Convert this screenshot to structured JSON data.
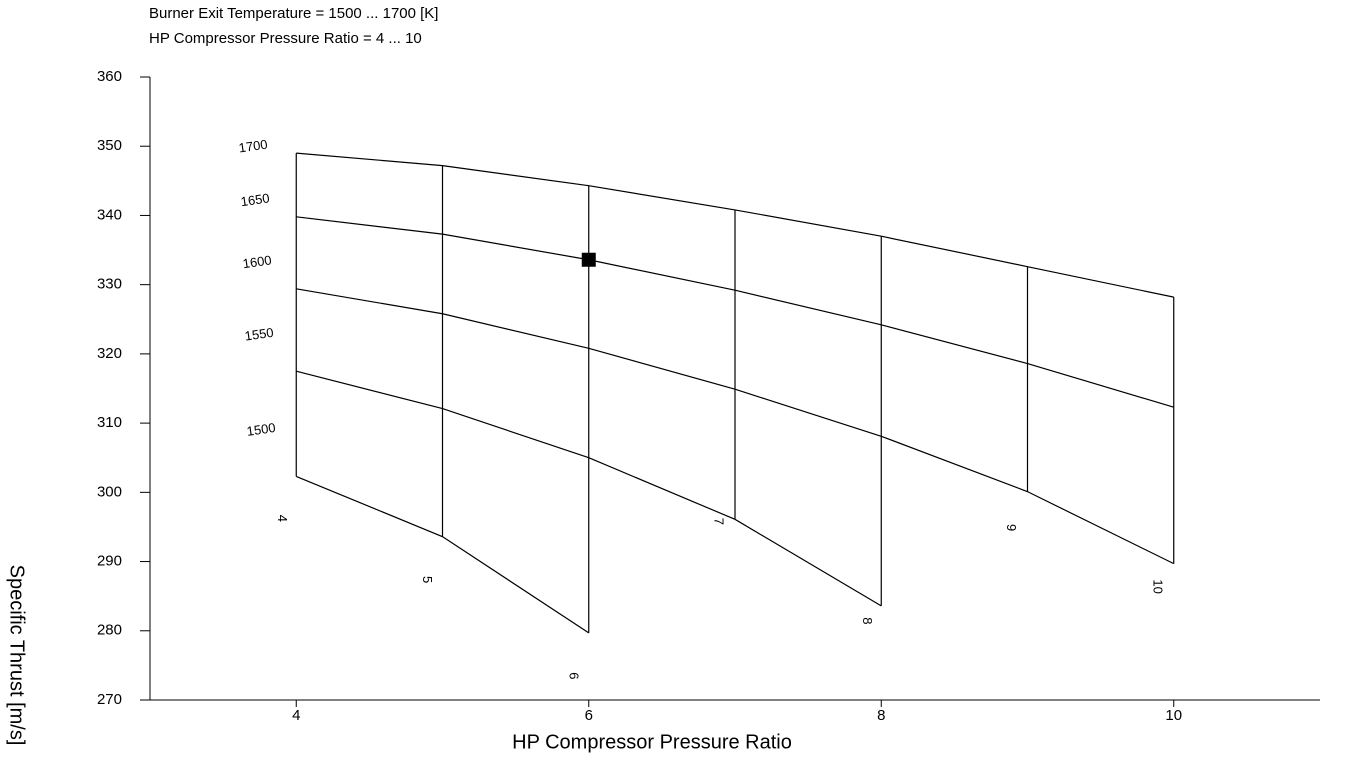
{
  "chart_data": {
    "type": "carpet",
    "subtitle_lines": [
      "Burner Exit Temperature = 1500 ... 1700 [K]",
      "HP Compressor Pressure Ratio = 4 ... 10"
    ],
    "x_label": "HP Compressor Pressure Ratio",
    "y_label": "Specific Thrust [m/s]",
    "x": [
      4,
      5,
      6,
      7,
      8,
      9,
      10
    ],
    "xlim": [
      3,
      11
    ],
    "xticks": [
      4,
      6,
      8,
      10
    ],
    "ylim": [
      270,
      360
    ],
    "yticks": [
      270,
      280,
      290,
      300,
      310,
      320,
      330,
      340,
      350,
      360
    ],
    "color": "#000000",
    "series": [
      {
        "name": "1700",
        "values": [
          349.0,
          347.2,
          344.3,
          340.8,
          337.0,
          332.6,
          328.2
        ]
      },
      {
        "name": "1650",
        "values": [
          339.8,
          337.3,
          333.6,
          329.2,
          324.2,
          318.6,
          312.3
        ]
      },
      {
        "name": "1600",
        "values": [
          329.4,
          325.8,
          320.8,
          314.9,
          308.1,
          300.1,
          289.7
        ]
      },
      {
        "name": "1550",
        "values": [
          317.5,
          312.1,
          305.0,
          296.1,
          283.6,
          null,
          null
        ]
      },
      {
        "name": "1500",
        "values": [
          302.3,
          293.6,
          279.7,
          null,
          null,
          null,
          null
        ]
      }
    ],
    "carpet_labels": [
      "4",
      "5",
      "6",
      "7",
      "8",
      "9",
      "10"
    ],
    "marker": {
      "x": 6,
      "y": 333.6
    }
  }
}
